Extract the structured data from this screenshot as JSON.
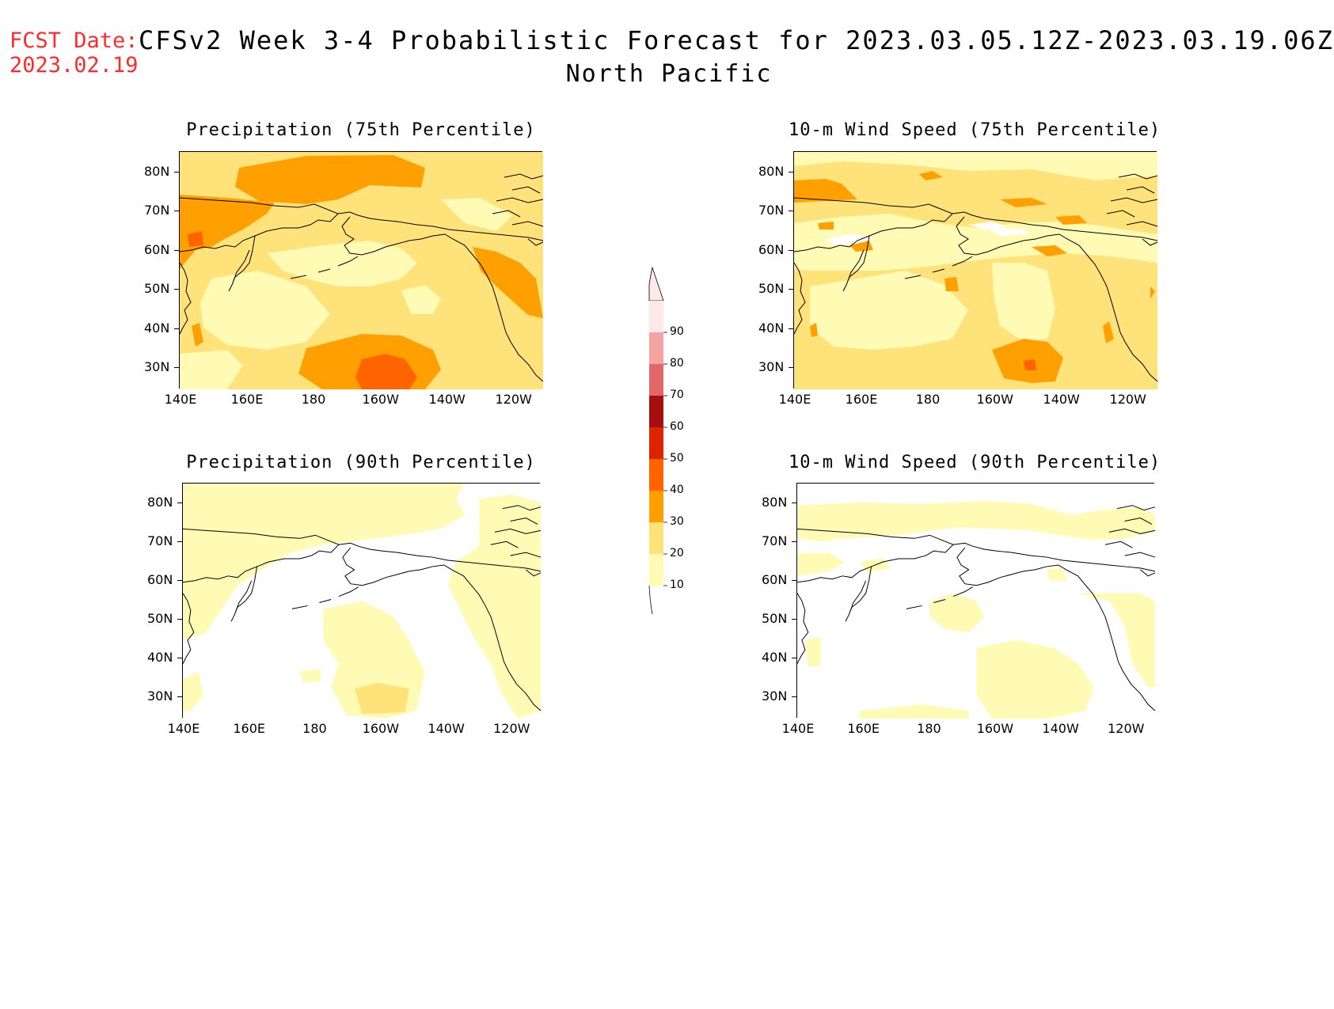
{
  "header": {
    "fcst_label": "FCST Date:",
    "fcst_date": "2023.02.19",
    "title": "CFSv2 Week 3-4 Probabilistic Forecast for 2023.03.05.12Z-2023.03.19.06Z",
    "subtitle": "North Pacific"
  },
  "panels": [
    {
      "title": "Precipitation (75th Percentile)"
    },
    {
      "title": "10-m Wind Speed (75th Percentile)"
    },
    {
      "title": "Precipitation (90th Percentile)"
    },
    {
      "title": "10-m Wind Speed (90th Percentile)"
    }
  ],
  "axes": {
    "lat_labels": [
      "80N",
      "70N",
      "60N",
      "50N",
      "40N",
      "30N"
    ],
    "lon_labels": [
      "140E",
      "160E",
      "180",
      "160W",
      "140W",
      "120W"
    ]
  },
  "colorbar": {
    "labels": [
      "90",
      "80",
      "70",
      "60",
      "50",
      "40",
      "30",
      "20",
      "10"
    ],
    "colors": [
      "#ffe8e8",
      "#f4a3a3",
      "#e06868",
      "#a50f0f",
      "#dd2200",
      "#ff6400",
      "#ffa000",
      "#ffe27a",
      "#fffab4"
    ]
  },
  "palette": {
    "white": "#ffffff",
    "c10": "#fffab4",
    "c20": "#ffe27a",
    "c30": "#ffa000",
    "c40": "#ff6400",
    "coast": "#000000"
  }
}
